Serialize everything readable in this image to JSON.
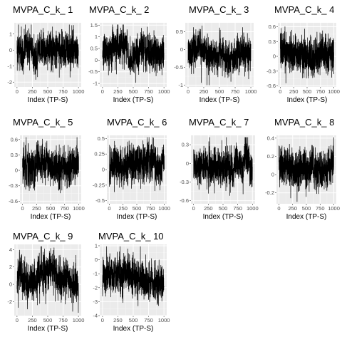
{
  "chart_data": [
    {
      "type": "line",
      "title": "MVPA_C_k_ 1",
      "xlabel": "Index (TP-S)",
      "ylabel": "",
      "xlim": [
        0,
        1000
      ],
      "xticks": [
        0,
        250,
        500,
        750,
        1000
      ],
      "ylim": [
        -2.3,
        1.7
      ],
      "yticks": [
        -2,
        -1,
        0,
        1
      ],
      "grid": true,
      "n_points": 1000,
      "series": [
        {
          "values": []
        }
      ]
    },
    {
      "type": "line",
      "title": "MVPA_C_k_ 2",
      "xlabel": "Index (TP-S)",
      "ylabel": "",
      "xlim": [
        0,
        1000
      ],
      "xticks": [
        0,
        250,
        500,
        750,
        1000
      ],
      "ylim": [
        -1.15,
        1.6
      ],
      "yticks": [
        -1.0,
        -0.5,
        0.0,
        0.5,
        1.0,
        1.5
      ],
      "grid": true,
      "n_points": 1000,
      "series": [
        {
          "values": []
        }
      ]
    },
    {
      "type": "line",
      "title": "MVPA_C_k_ 3",
      "xlabel": "Index (TP-S)",
      "ylabel": "",
      "xlim": [
        0,
        1000
      ],
      "xticks": [
        0,
        250,
        500,
        750,
        1000
      ],
      "ylim": [
        -1.05,
        0.75
      ],
      "yticks": [
        -1.0,
        -0.5,
        0.0,
        0.5
      ],
      "grid": true,
      "n_points": 1000,
      "series": [
        {
          "values": []
        }
      ]
    },
    {
      "type": "line",
      "title": "MVPA_C_k_ 4",
      "xlabel": "Index (TP-S)",
      "ylabel": "",
      "xlim": [
        0,
        1000
      ],
      "xticks": [
        0,
        250,
        500,
        750,
        1000
      ],
      "ylim": [
        -0.62,
        0.68
      ],
      "yticks": [
        -0.6,
        -0.3,
        0.0,
        0.3,
        0.6
      ],
      "grid": true,
      "n_points": 1000,
      "series": [
        {
          "values": []
        }
      ]
    },
    {
      "type": "line",
      "title": "MVPA_C_k_ 5",
      "xlabel": "Index (TP-S)",
      "ylabel": "",
      "xlim": [
        0,
        1000
      ],
      "xticks": [
        0,
        250,
        500,
        750,
        1000
      ],
      "ylim": [
        -0.65,
        0.68
      ],
      "yticks": [
        -0.6,
        -0.3,
        0.0,
        0.3,
        0.6
      ],
      "grid": true,
      "n_points": 1000,
      "series": [
        {
          "values": []
        }
      ]
    },
    {
      "type": "line",
      "title": "MVPA_C_k_ 6",
      "xlabel": "Index (TP-S)",
      "ylabel": "",
      "xlim": [
        0,
        1000
      ],
      "xticks": [
        0,
        250,
        500,
        750,
        1000
      ],
      "ylim": [
        -0.55,
        0.55
      ],
      "yticks": [
        -0.5,
        -0.25,
        0.0,
        0.25,
        0.5
      ],
      "grid": true,
      "n_points": 1000,
      "series": [
        {
          "values": []
        }
      ]
    },
    {
      "type": "line",
      "title": "MVPA_C_k_ 7",
      "xlabel": "Index (TP-S)",
      "ylabel": "",
      "xlim": [
        0,
        1000
      ],
      "xticks": [
        0,
        250,
        500,
        750,
        1000
      ],
      "ylim": [
        -0.65,
        0.45
      ],
      "yticks": [
        -0.6,
        -0.3,
        0.0,
        0.3
      ],
      "grid": true,
      "n_points": 1000,
      "series": [
        {
          "values": []
        }
      ]
    },
    {
      "type": "line",
      "title": "MVPA_C_k_ 8",
      "xlabel": "Index (TP-S)",
      "ylabel": "",
      "xlim": [
        0,
        1000
      ],
      "xticks": [
        0,
        250,
        500,
        750,
        1000
      ],
      "ylim": [
        -0.32,
        0.43
      ],
      "yticks": [
        -0.2,
        0.0,
        0.2,
        0.4
      ],
      "grid": true,
      "n_points": 1000,
      "series": [
        {
          "values": []
        }
      ]
    },
    {
      "type": "line",
      "title": "MVPA_C_k_ 9",
      "xlabel": "Index (TP-S)",
      "ylabel": "",
      "xlim": [
        0,
        1000
      ],
      "xticks": [
        0,
        250,
        500,
        750,
        1000
      ],
      "ylim": [
        -3.6,
        4.6
      ],
      "yticks": [
        -2,
        0,
        2,
        4
      ],
      "grid": true,
      "n_points": 1000,
      "series": [
        {
          "values": []
        }
      ]
    },
    {
      "type": "line",
      "title": "MVPA_C_k_ 10",
      "xlabel": "Index (TP-S)",
      "ylabel": "",
      "xlim": [
        0,
        1000
      ],
      "xticks": [
        0,
        250,
        500,
        750,
        1000
      ],
      "ylim": [
        -4.0,
        1.1
      ],
      "yticks": [
        -4,
        -3,
        -2,
        -1,
        0,
        1
      ],
      "grid": true,
      "n_points": 1000,
      "series": [
        {
          "values": []
        }
      ]
    }
  ],
  "colors": {
    "panel_bg": "#ebebeb",
    "grid_major": "#ffffff",
    "grid_minor": "#f5f5f5",
    "line": "#000000",
    "tick_text": "#4d4d4d"
  }
}
